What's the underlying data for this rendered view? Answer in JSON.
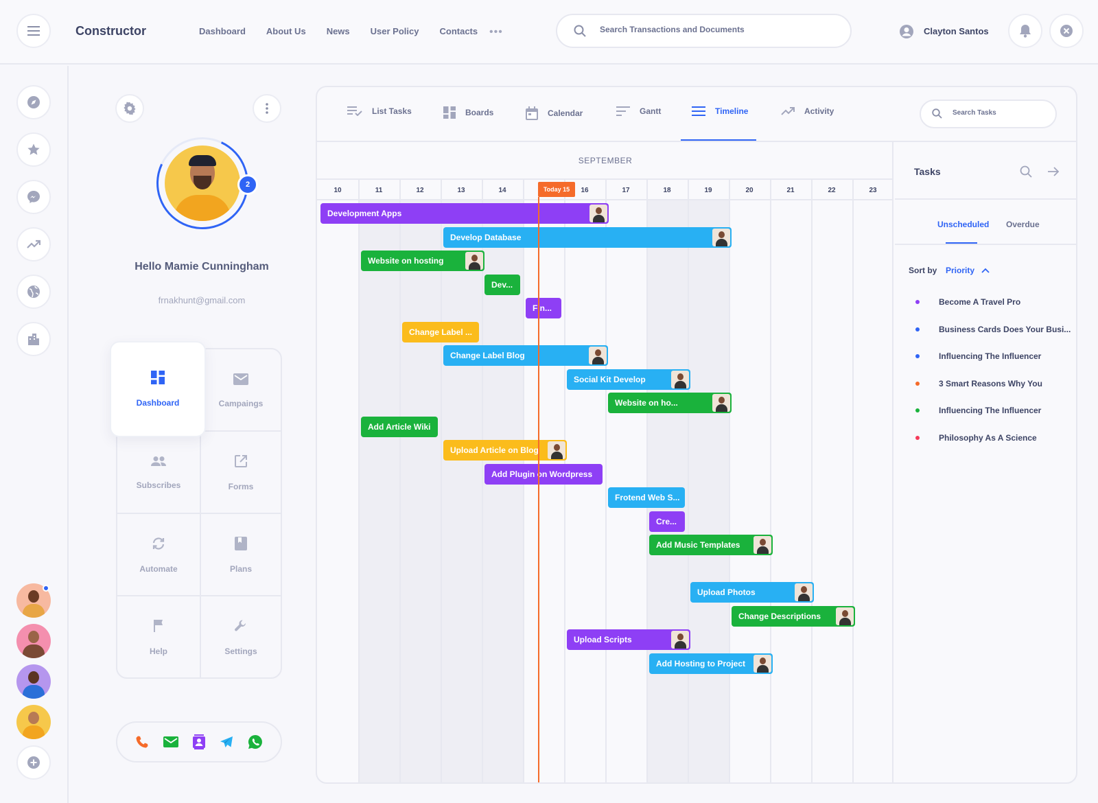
{
  "app": {
    "brand": "Constructor",
    "accent": "#2f64f5"
  },
  "header": {
    "nav": [
      "Dashboard",
      "About Us",
      "News",
      "User Policy",
      "Contacts"
    ],
    "more": "•••",
    "search_placeholder": "Search Transactions and Documents",
    "user_name": "Clayton Santos"
  },
  "profile": {
    "badge_count": "2",
    "greeting": "Hello Mamie Cunningham",
    "email": "frnakhunt@gmail.com"
  },
  "menu": {
    "active": "Dashboard",
    "items": [
      "Campaings",
      "Subscribes",
      "Forms",
      "Automate",
      "Plans",
      "Help",
      "Settings"
    ]
  },
  "tabs": [
    "List Tasks",
    "Boards",
    "Calendar",
    "Gantt",
    "Timeline",
    "Activity"
  ],
  "active_tab": "Timeline",
  "task_search_placeholder": "Search Tasks",
  "timeline": {
    "month": "SEPTEMBER",
    "days": [
      "10",
      "11",
      "12",
      "13",
      "14",
      "15",
      "16",
      "17",
      "18",
      "19",
      "20",
      "21",
      "22",
      "23"
    ],
    "today_label": "Today 15",
    "bars": [
      {
        "label": "Development Apps",
        "color": "purple",
        "start": 10,
        "end": 17,
        "avatar": true
      },
      {
        "label": "Develop Database",
        "color": "blue",
        "start": 13,
        "end": 20,
        "avatar": true
      },
      {
        "label": "Website on hosting",
        "color": "green",
        "start": 11,
        "end": 14,
        "avatar": true
      },
      {
        "label": "Dev...",
        "color": "green",
        "start": 14,
        "end": 15,
        "avatar": false
      },
      {
        "label": "Fin...",
        "color": "purple",
        "start": 15,
        "end": 16,
        "avatar": false
      },
      {
        "label": "Change Label ...",
        "color": "yellow",
        "start": 12,
        "end": 14,
        "avatar": false
      },
      {
        "label": "Change Label Blog",
        "color": "blue",
        "start": 13,
        "end": 17,
        "avatar": true
      },
      {
        "label": "Social Kit Develop",
        "color": "blue",
        "start": 16,
        "end": 19,
        "avatar": true
      },
      {
        "label": "Website on ho...",
        "color": "green",
        "start": 17,
        "end": 20,
        "avatar": true
      },
      {
        "label": "Add Article Wiki",
        "color": "green",
        "start": 11,
        "end": 13,
        "avatar": false
      },
      {
        "label": "Upload Article on Blog",
        "color": "yellow",
        "start": 13,
        "end": 16,
        "avatar": true
      },
      {
        "label": "Add Plugin on Wordpress",
        "color": "purple",
        "start": 14,
        "end": 17,
        "avatar": false
      },
      {
        "label": "Frotend Web S...",
        "color": "blue",
        "start": 17,
        "end": 19,
        "avatar": false
      },
      {
        "label": "Cre...",
        "color": "purple",
        "start": 18,
        "end": 19,
        "avatar": false
      },
      {
        "label": "Add Music Templates",
        "color": "green",
        "start": 18,
        "end": 21,
        "avatar": true
      },
      {
        "label": "Upload Photos",
        "color": "blue",
        "start": 19,
        "end": 22,
        "avatar": true
      },
      {
        "label": "Change Descriptions",
        "color": "green",
        "start": 20,
        "end": 23,
        "avatar": true
      },
      {
        "label": "Upload Scripts",
        "color": "purple",
        "start": 16,
        "end": 19,
        "avatar": true
      },
      {
        "label": "Add Hosting to Project",
        "color": "blue",
        "start": 18,
        "end": 21,
        "avatar": true
      }
    ]
  },
  "tasks_panel": {
    "title": "Tasks",
    "tabs": [
      "Unscheduled",
      "Overdue"
    ],
    "sort_label": "Sort by",
    "sort_value": "Priority",
    "items": [
      {
        "label": "Become A Travel Pro",
        "color": "#8e3ff5"
      },
      {
        "label": "Business Cards Does Your Busi...",
        "color": "#2f64f5"
      },
      {
        "label": "Influencing The Influencer",
        "color": "#2f64f5"
      },
      {
        "label": "3 Smart Reasons Why You",
        "color": "#f56b2a"
      },
      {
        "label": "Influencing The Influencer",
        "color": "#1ab23c"
      },
      {
        "label": "Philosophy As A Science",
        "color": "#f53b5a"
      }
    ]
  }
}
